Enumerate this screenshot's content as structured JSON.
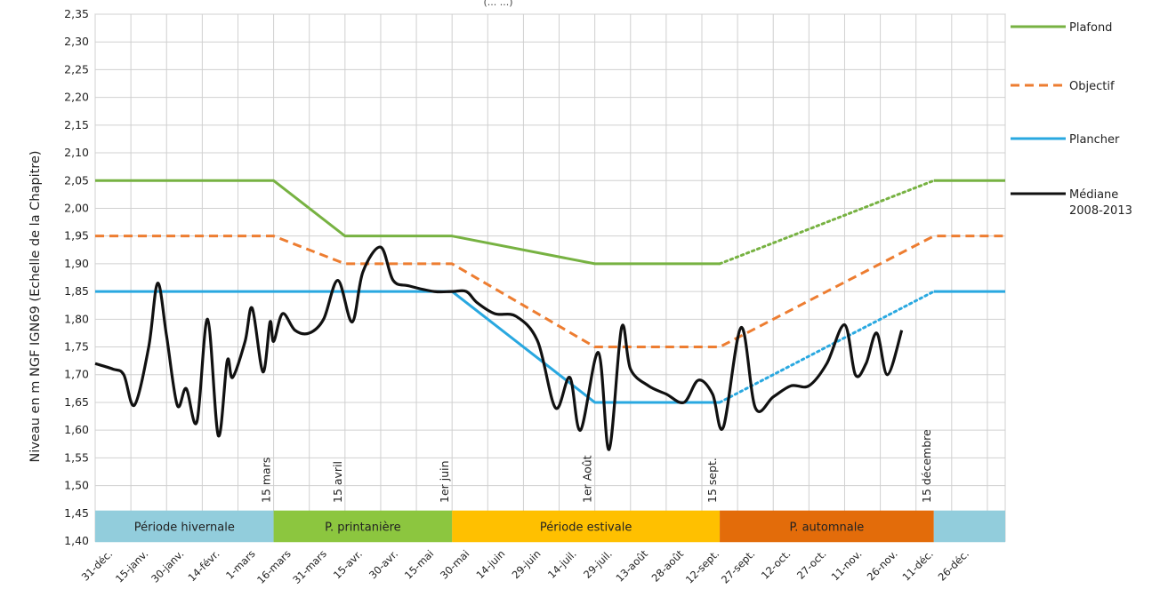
{
  "chart_data": {
    "type": "line",
    "subtitle": "(... ...)",
    "ylabel": "Niveau en m NGF IGN69  (Echelle de la Chapitre)",
    "ylim": [
      1.4,
      2.35
    ],
    "yticks": [
      "1,40",
      "1,45",
      "1,50",
      "1,55",
      "1,60",
      "1,65",
      "1,70",
      "1,75",
      "1,80",
      "1,85",
      "1,90",
      "1,95",
      "2,00",
      "2,05",
      "2,10",
      "2,15",
      "2,20",
      "2,25",
      "2,30",
      "2,35"
    ],
    "x_categories": [
      "31-déc.",
      "15-janv.",
      "30-janv.",
      "14-févr.",
      "1-mars",
      "16-mars",
      "31-mars",
      "15-avr.",
      "30-avr.",
      "15-mai",
      "30-mai",
      "14-juin",
      "29-juin",
      "14-juil.",
      "29-juil.",
      "13-août",
      "28-août",
      "12-sept.",
      "27-sept.",
      "12-oct.",
      "27-oct.",
      "11-nov.",
      "26-nov.",
      "11-déc.",
      "26-déc."
    ],
    "grid": true,
    "legend_position": "right",
    "series": [
      {
        "name": "Plafond",
        "color": "#77b242",
        "style": "solid",
        "points": [
          [
            0,
            2.05
          ],
          [
            5,
            2.05
          ],
          [
            7,
            1.95
          ],
          [
            10,
            1.95
          ],
          [
            14,
            1.9
          ],
          [
            17.5,
            1.9
          ]
        ]
      },
      {
        "name": "Objectif",
        "color": "#ed7d31",
        "style": "dashed",
        "points": [
          [
            0,
            1.95
          ],
          [
            5,
            1.95
          ],
          [
            7,
            1.9
          ],
          [
            10,
            1.9
          ],
          [
            14,
            1.75
          ],
          [
            17.5,
            1.75
          ],
          [
            23.5,
            1.95
          ],
          [
            25.5,
            1.95
          ]
        ]
      },
      {
        "name": "Plancher",
        "color": "#29a8e0",
        "style": "solid",
        "points": [
          [
            0,
            1.85
          ],
          [
            10,
            1.85
          ],
          [
            14,
            1.65
          ],
          [
            17.5,
            1.65
          ]
        ]
      },
      {
        "name": "Médiane 2008-2013",
        "color": "#111111",
        "style": "solid",
        "points": [
          [
            0,
            1.72
          ],
          [
            0.5,
            1.71
          ],
          [
            0.8,
            1.7
          ],
          [
            1.1,
            1.645
          ],
          [
            1.5,
            1.75
          ],
          [
            1.75,
            1.865
          ],
          [
            2.0,
            1.77
          ],
          [
            2.3,
            1.645
          ],
          [
            2.55,
            1.675
          ],
          [
            2.85,
            1.615
          ],
          [
            3.15,
            1.8
          ],
          [
            3.45,
            1.59
          ],
          [
            3.7,
            1.725
          ],
          [
            3.85,
            1.695
          ],
          [
            4.2,
            1.76
          ],
          [
            4.4,
            1.82
          ],
          [
            4.7,
            1.705
          ],
          [
            4.9,
            1.795
          ],
          [
            5.0,
            1.76
          ],
          [
            5.25,
            1.81
          ],
          [
            5.6,
            1.78
          ],
          [
            6.0,
            1.775
          ],
          [
            6.4,
            1.8
          ],
          [
            6.8,
            1.87
          ],
          [
            7.2,
            1.795
          ],
          [
            7.5,
            1.885
          ],
          [
            8.0,
            1.93
          ],
          [
            8.35,
            1.87
          ],
          [
            8.8,
            1.86
          ],
          [
            9.5,
            1.85
          ],
          [
            10.0,
            1.85
          ],
          [
            10.4,
            1.85
          ],
          [
            10.7,
            1.83
          ],
          [
            11.2,
            1.81
          ],
          [
            11.8,
            1.805
          ],
          [
            12.4,
            1.76
          ],
          [
            12.9,
            1.64
          ],
          [
            13.3,
            1.695
          ],
          [
            13.6,
            1.6
          ],
          [
            14.1,
            1.74
          ],
          [
            14.4,
            1.565
          ],
          [
            14.75,
            1.785
          ],
          [
            15.0,
            1.71
          ],
          [
            15.5,
            1.68
          ],
          [
            16.0,
            1.665
          ],
          [
            16.5,
            1.65
          ],
          [
            16.9,
            1.69
          ],
          [
            17.3,
            1.665
          ],
          [
            17.6,
            1.605
          ],
          [
            18.1,
            1.785
          ],
          [
            18.5,
            1.64
          ],
          [
            19.0,
            1.66
          ],
          [
            19.5,
            1.68
          ],
          [
            20.0,
            1.68
          ],
          [
            20.5,
            1.72
          ],
          [
            21.0,
            1.79
          ],
          [
            21.3,
            1.7
          ],
          [
            21.6,
            1.72
          ],
          [
            21.9,
            1.775
          ],
          [
            22.2,
            1.7
          ],
          [
            22.6,
            1.78
          ]
        ]
      }
    ],
    "projections": [
      {
        "name": "Plafond",
        "color": "#77b242",
        "style": "dotted",
        "points": [
          [
            17.5,
            1.9
          ],
          [
            23.5,
            2.05
          ]
        ]
      },
      {
        "name": "Plancher",
        "color": "#29a8e0",
        "style": "dotted",
        "points": [
          [
            17.5,
            1.65
          ],
          [
            23.5,
            1.85
          ]
        ]
      },
      {
        "name": "Plafond",
        "color": "#77b242",
        "style": "solid",
        "points": [
          [
            23.5,
            2.05
          ],
          [
            25.5,
            2.05
          ]
        ]
      },
      {
        "name": "Plancher",
        "color": "#29a8e0",
        "style": "solid",
        "points": [
          [
            23.5,
            1.85
          ],
          [
            25.5,
            1.85
          ]
        ]
      }
    ],
    "periods": [
      {
        "label": "Période hivernale",
        "color": "#92cddc",
        "start": 0,
        "end": 5
      },
      {
        "label": "P. printanière",
        "color": "#8cc63f",
        "start": 5,
        "end": 10
      },
      {
        "label": "Période estivale",
        "color": "#ffc000",
        "start": 10,
        "end": 17.5
      },
      {
        "label": "P. automnale",
        "color": "#e36c0a",
        "start": 17.5,
        "end": 23.5
      },
      {
        "label": "",
        "color": "#92cddc",
        "start": 23.5,
        "end": 25.5
      }
    ],
    "date_markers": [
      {
        "label": "15 mars",
        "x": 5
      },
      {
        "label": "15 avril",
        "x": 7
      },
      {
        "label": "1er juin",
        "x": 10
      },
      {
        "label": "1er Août",
        "x": 14
      },
      {
        "label": "15 sept.",
        "x": 17.5
      },
      {
        "label": "15 décembre",
        "x": 23.5
      }
    ],
    "legend": [
      {
        "label": "Plafond",
        "color": "#77b242",
        "style": "solid"
      },
      {
        "label": "Objectif",
        "color": "#ed7d31",
        "style": "dashed"
      },
      {
        "label": "Plancher",
        "color": "#29a8e0",
        "style": "solid"
      },
      {
        "label": "Médiane",
        "label2": "2008-2013",
        "color": "#111111",
        "style": "solid"
      }
    ]
  }
}
